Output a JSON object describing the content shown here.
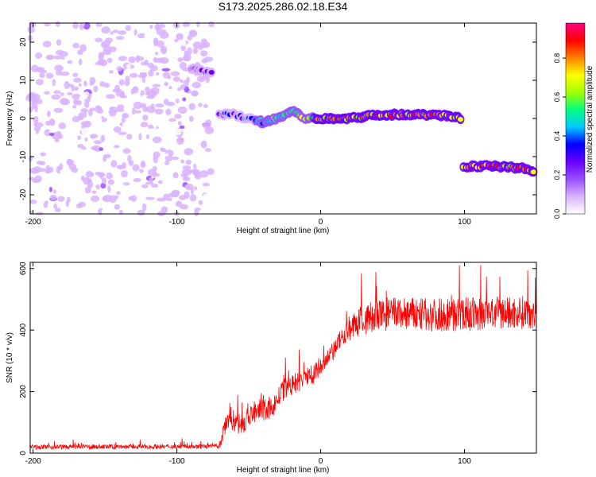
{
  "title": "S173.2025.286.02.18.E34",
  "chart_data": [
    {
      "type": "heatmap",
      "name": "spectrogram",
      "xlabel": "Height of straight line (km)",
      "ylabel": "Frequency (Hz)",
      "xlim": [
        -202,
        150
      ],
      "ylim": [
        -25,
        25
      ],
      "xticks": [
        -200,
        -100,
        0,
        100
      ],
      "yticks": [
        -20,
        -10,
        0,
        10,
        20
      ],
      "colorbar": {
        "label": "Normalized spectral amplitude",
        "range": [
          0,
          0.98
        ],
        "ticks": [
          0.0,
          0.2,
          0.4,
          0.6,
          0.8
        ],
        "tick_labels": [
          "0.0",
          "0.2",
          "0.4",
          "0.6",
          "0.8"
        ],
        "colors": [
          "#ffffff",
          "#d9b3ff",
          "#9a4dff",
          "#6a00ff",
          "#0000ff",
          "#00c8ff",
          "#00ff80",
          "#a0ff00",
          "#ffff00",
          "#ff8000",
          "#ff0000",
          "#ff0080"
        ]
      },
      "noise_region": {
        "x": [
          -202,
          -76
        ],
        "y": [
          -25,
          25
        ],
        "amplitude": 0.12
      },
      "signal_track": [
        {
          "x": -90,
          "y": 13,
          "amplitude": 0.2
        },
        {
          "x": -75,
          "y": 12,
          "amplitude": 0.25
        },
        {
          "x": -70,
          "y": 1,
          "amplitude": 0.3
        },
        {
          "x": -60,
          "y": 1,
          "amplitude": 0.35
        },
        {
          "x": -50,
          "y": 0,
          "amplitude": 0.4
        },
        {
          "x": -40,
          "y": -1,
          "amplitude": 0.5
        },
        {
          "x": -30,
          "y": 0,
          "amplitude": 0.6
        },
        {
          "x": -20,
          "y": 2,
          "amplitude": 0.55
        },
        {
          "x": -10,
          "y": 0,
          "amplitude": 0.7
        },
        {
          "x": 0,
          "y": 0,
          "amplitude": 0.8
        },
        {
          "x": 20,
          "y": 0,
          "amplitude": 0.85
        },
        {
          "x": 40,
          "y": 1,
          "amplitude": 0.8
        },
        {
          "x": 60,
          "y": 1,
          "amplitude": 0.85
        },
        {
          "x": 80,
          "y": 1,
          "amplitude": 0.8
        },
        {
          "x": 99,
          "y": 0,
          "amplitude": 0.8
        },
        {
          "x": 100,
          "y": -12.5,
          "amplitude": 0.85
        },
        {
          "x": 120,
          "y": -12.5,
          "amplitude": 0.9
        },
        {
          "x": 140,
          "y": -13,
          "amplitude": 0.85
        },
        {
          "x": 150,
          "y": -14,
          "amplitude": 0.8
        }
      ]
    },
    {
      "type": "line",
      "name": "snr",
      "xlabel": "Height of straight line (km)",
      "ylabel": "SNR (10 * v/v)",
      "xlim": [
        -202,
        150
      ],
      "ylim": [
        0,
        620
      ],
      "xticks": [
        -200,
        -100,
        0,
        100
      ],
      "yticks": [
        0,
        200,
        400,
        600
      ],
      "color": "#ff0000",
      "trend": {
        "x": [
          -202,
          -70,
          -65,
          -55,
          -45,
          -35,
          -25,
          -15,
          -5,
          5,
          15,
          25,
          35,
          50,
          70,
          100,
          130,
          150
        ],
        "y": [
          20,
          22,
          120,
          90,
          140,
          140,
          210,
          230,
          260,
          300,
          380,
          420,
          440,
          455,
          450,
          450,
          455,
          460
        ],
        "noise": [
          15,
          15,
          80,
          70,
          70,
          70,
          70,
          70,
          70,
          70,
          60,
          90,
          110,
          110,
          110,
          110,
          110,
          110
        ]
      }
    }
  ]
}
